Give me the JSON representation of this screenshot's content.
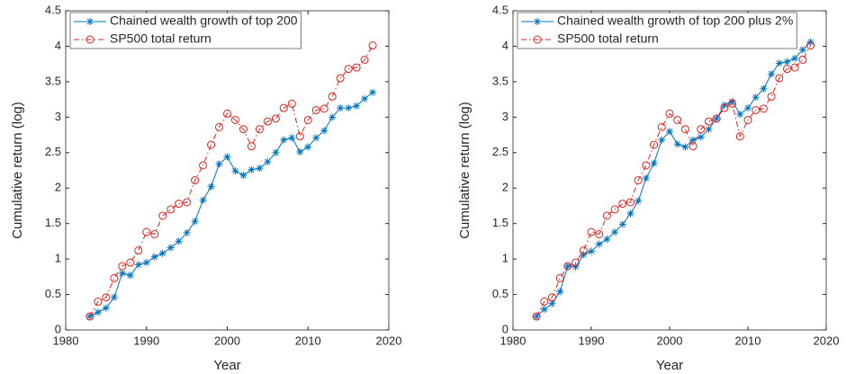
{
  "chart_data": [
    {
      "type": "line",
      "xlabel": "Year",
      "ylabel": "Cumulative return (log)",
      "x": [
        1983,
        1984,
        1985,
        1986,
        1987,
        1988,
        1989,
        1990,
        1991,
        1992,
        1993,
        1994,
        1995,
        1996,
        1997,
        1998,
        1999,
        2000,
        2001,
        2002,
        2003,
        2004,
        2005,
        2006,
        2007,
        2008,
        2009,
        2010,
        2011,
        2012,
        2013,
        2014,
        2015,
        2016,
        2017,
        2018
      ],
      "series": [
        {
          "name": "Chained wealth growth of top 200",
          "color": "#0072bd",
          "marker": "star",
          "linestyle": "solid",
          "values": [
            0.19,
            0.25,
            0.31,
            0.46,
            0.8,
            0.77,
            0.92,
            0.95,
            1.03,
            1.08,
            1.16,
            1.25,
            1.37,
            1.53,
            1.83,
            2.02,
            2.34,
            2.44,
            2.24,
            2.18,
            2.26,
            2.28,
            2.37,
            2.5,
            2.68,
            2.71,
            2.51,
            2.58,
            2.71,
            2.81,
            3.0,
            3.13,
            3.13,
            3.16,
            3.26,
            3.35
          ]
        },
        {
          "name": "SP500 total return",
          "color": "#e0201b",
          "marker": "circle",
          "linestyle": "dashdot",
          "values": [
            0.19,
            0.4,
            0.46,
            0.73,
            0.9,
            0.95,
            1.12,
            1.38,
            1.35,
            1.61,
            1.7,
            1.78,
            1.8,
            2.11,
            2.32,
            2.61,
            2.86,
            3.05,
            2.96,
            2.83,
            2.59,
            2.83,
            2.94,
            2.98,
            3.13,
            3.19,
            2.73,
            2.96,
            3.1,
            3.12,
            3.29,
            3.55,
            3.68,
            3.7,
            3.81,
            4.01
          ]
        }
      ],
      "xlim": [
        1980,
        2020
      ],
      "xticks": [
        1980,
        1990,
        2000,
        2010,
        2020
      ],
      "ylim": [
        0,
        4.5
      ],
      "yticks": [
        0,
        0.5,
        1,
        1.5,
        2,
        2.5,
        3,
        3.5,
        4,
        4.5
      ],
      "legend": "upper-left",
      "grid": false
    },
    {
      "type": "line",
      "xlabel": "Year",
      "ylabel": "Cumulative return (log)",
      "x": [
        1983,
        1984,
        1985,
        1986,
        1987,
        1988,
        1989,
        1990,
        1991,
        1992,
        1993,
        1994,
        1995,
        1996,
        1997,
        1998,
        1999,
        2000,
        2001,
        2002,
        2003,
        2004,
        2005,
        2006,
        2007,
        2008,
        2009,
        2010,
        2011,
        2012,
        2013,
        2014,
        2015,
        2016,
        2017,
        2018
      ],
      "series": [
        {
          "name": "Chained wealth growth of top 200 plus 2%",
          "color": "#0072bd",
          "marker": "star",
          "linestyle": "solid",
          "values": [
            0.19,
            0.29,
            0.37,
            0.54,
            0.9,
            0.89,
            1.06,
            1.11,
            1.21,
            1.28,
            1.38,
            1.49,
            1.64,
            1.82,
            2.14,
            2.35,
            2.68,
            2.8,
            2.62,
            2.58,
            2.68,
            2.72,
            2.83,
            2.98,
            3.17,
            3.22,
            3.04,
            3.13,
            3.28,
            3.4,
            3.61,
            3.76,
            3.78,
            3.83,
            3.95,
            4.06
          ]
        },
        {
          "name": "SP500 total return",
          "color": "#e0201b",
          "marker": "circle",
          "linestyle": "dashdot",
          "values": [
            0.19,
            0.4,
            0.46,
            0.73,
            0.9,
            0.95,
            1.12,
            1.38,
            1.35,
            1.61,
            1.7,
            1.78,
            1.8,
            2.11,
            2.32,
            2.61,
            2.86,
            3.05,
            2.96,
            2.83,
            2.59,
            2.83,
            2.94,
            2.98,
            3.13,
            3.19,
            2.73,
            2.96,
            3.1,
            3.12,
            3.29,
            3.55,
            3.68,
            3.7,
            3.81,
            4.01
          ]
        }
      ],
      "xlim": [
        1980,
        2020
      ],
      "xticks": [
        1980,
        1990,
        2000,
        2010,
        2020
      ],
      "ylim": [
        0,
        4.5
      ],
      "yticks": [
        0,
        0.5,
        1,
        1.5,
        2,
        2.5,
        3,
        3.5,
        4,
        4.5
      ],
      "legend": "upper-left",
      "grid": false
    }
  ]
}
